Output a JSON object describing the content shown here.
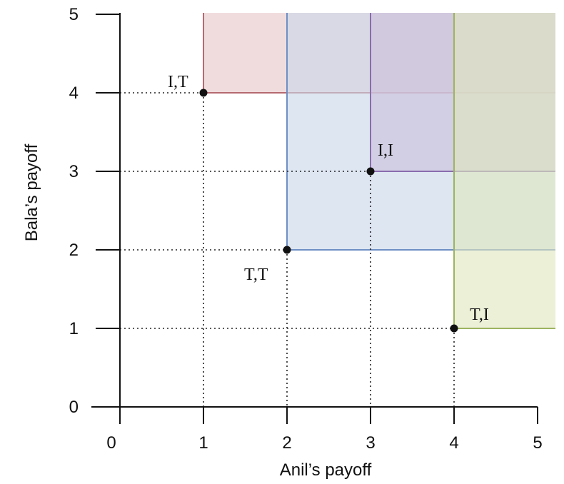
{
  "chart_data": {
    "type": "scatter",
    "xlabel": "Anil’s payoff",
    "ylabel": "Bala’s payoff",
    "xlim": [
      0,
      5
    ],
    "ylim": [
      0,
      5
    ],
    "x_ticks": [
      0,
      1,
      2,
      3,
      4,
      5
    ],
    "y_ticks": [
      0,
      1,
      2,
      3,
      4,
      5
    ],
    "grid": false,
    "points": [
      {
        "label": "I,T",
        "x": 1,
        "y": 4,
        "region_color": "#e8c6c8",
        "border_color": "#b56a70"
      },
      {
        "label": "T,T",
        "x": 2,
        "y": 2,
        "region_color": "#c9d6ea",
        "border_color": "#6e8fc4"
      },
      {
        "label": "I,I",
        "x": 3,
        "y": 3,
        "region_color": "#cbbfda",
        "border_color": "#8a6cae"
      },
      {
        "label": "T,I",
        "x": 4,
        "y": 1,
        "region_color": "#dfe6bf",
        "border_color": "#9db460"
      }
    ]
  }
}
